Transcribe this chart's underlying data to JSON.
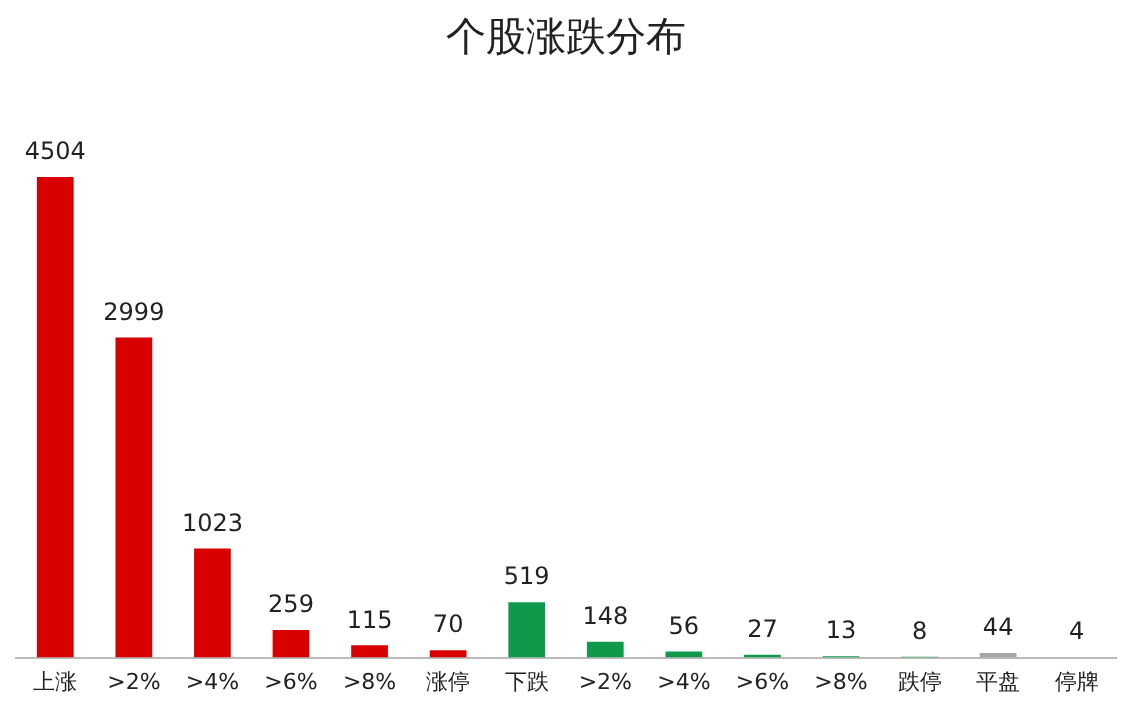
{
  "chart_data": {
    "type": "bar",
    "title": "个股涨跌分布",
    "categories": [
      "上涨",
      ">2%",
      ">4%",
      ">6%",
      ">8%",
      "涨停",
      "下跌",
      ">2%",
      ">4%",
      ">6%",
      ">8%",
      "跌停",
      "平盘",
      "停牌"
    ],
    "values": [
      4504,
      2999,
      1023,
      259,
      115,
      70,
      519,
      148,
      56,
      27,
      13,
      8,
      44,
      4
    ],
    "colors": [
      "#d90000",
      "#d90000",
      "#d90000",
      "#d90000",
      "#d90000",
      "#d90000",
      "#10994a",
      "#10994a",
      "#10994a",
      "#10994a",
      "#10994a",
      "#10994a",
      "#a6a6a6",
      "#a6a6a6"
    ],
    "data_labels": true,
    "tick_labels": "x",
    "grid": false,
    "legend": false
  }
}
